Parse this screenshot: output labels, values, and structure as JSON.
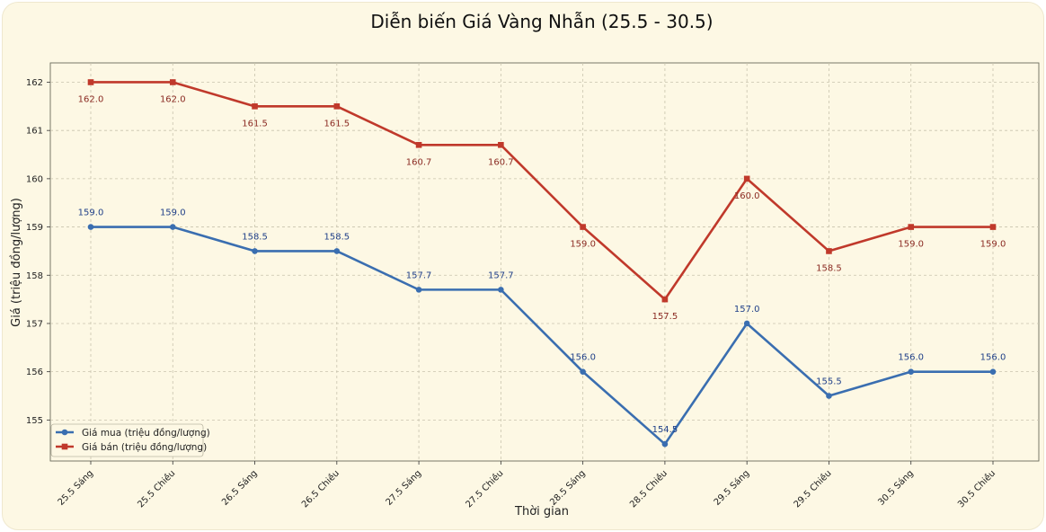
{
  "chart_data": {
    "type": "line",
    "title": "Diễn biến Giá Vàng Nhẫn (25.5 - 30.5)",
    "xlabel": "Thời gian",
    "ylabel": "Giá (triệu đồng/lượng)",
    "categories": [
      "25.5 Sáng",
      "25.5 Chiều",
      "26.5 Sáng",
      "26.5 Chiều",
      "27.5 Sáng",
      "27.5 Chiều",
      "28.5 Sáng",
      "28.5 Chiều",
      "29.5 Sáng",
      "29.5 Chiều",
      "30.5 Sáng",
      "30.5 Chiều"
    ],
    "ylim": [
      154.15,
      162.4
    ],
    "yticks": [
      155,
      156,
      157,
      158,
      159,
      160,
      161,
      162
    ],
    "grid": true,
    "legend_position": "bottom-left",
    "series": [
      {
        "name": "Giá mua (triệu đồng/lượng)",
        "color": "#3a6eb0",
        "marker": "circle",
        "values": [
          159.0,
          159.0,
          158.5,
          158.5,
          157.7,
          157.7,
          156.0,
          154.5,
          157.0,
          155.5,
          156.0,
          156.0
        ],
        "labels": [
          "159.0",
          "159.0",
          "158.5",
          "158.5",
          "157.7",
          "157.7",
          "156.0",
          "154.5",
          "157.0",
          "155.5",
          "156.0",
          "156.0"
        ]
      },
      {
        "name": "Giá bán (triệu đồng/lượng)",
        "color": "#c0392b",
        "marker": "square",
        "values": [
          162.0,
          162.0,
          161.5,
          161.5,
          160.7,
          160.7,
          159.0,
          157.5,
          160.0,
          158.5,
          159.0,
          159.0
        ],
        "labels": [
          "162.0",
          "162.0",
          "161.5",
          "161.5",
          "160.7",
          "160.7",
          "159.0",
          "157.5",
          "160.0",
          "158.5",
          "159.0",
          "159.0"
        ]
      }
    ]
  }
}
